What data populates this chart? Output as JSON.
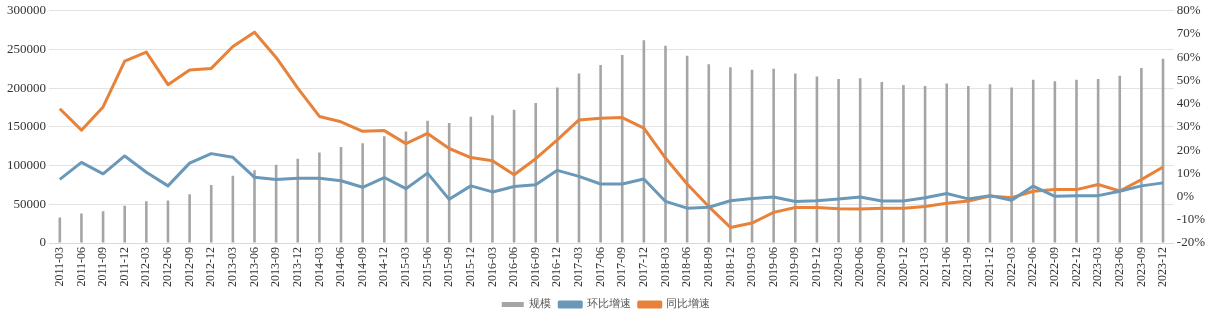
{
  "chart_data": {
    "type": "bar",
    "categories": [
      "2011-03",
      "2011-06",
      "2011-09",
      "2011-12",
      "2012-03",
      "2012-06",
      "2012-09",
      "2012-12",
      "2013-03",
      "2013-06",
      "2013-09",
      "2013-12",
      "2014-03",
      "2014-06",
      "2014-09",
      "2014-12",
      "2015-03",
      "2015-06",
      "2015-09",
      "2015-12",
      "2016-03",
      "2016-06",
      "2016-09",
      "2016-12",
      "2017-03",
      "2017-06",
      "2017-09",
      "2017-12",
      "2018-03",
      "2018-06",
      "2018-09",
      "2018-12",
      "2019-03",
      "2019-06",
      "2019-09",
      "2019-12",
      "2020-03",
      "2020-06",
      "2020-09",
      "2020-12",
      "2021-03",
      "2021-06",
      "2021-09",
      "2021-12",
      "2022-03",
      "2022-06",
      "2022-09",
      "2022-12",
      "2023-03",
      "2023-06",
      "2023-09",
      "2023-12"
    ],
    "series": [
      {
        "name": "规模",
        "color": "#a5a5a5",
        "values": [
          33000,
          38000,
          41000,
          48000,
          54000,
          55000,
          63000,
          75000,
          87000,
          94000,
          101000,
          109000,
          117000,
          124000,
          129000,
          138000,
          144000,
          158000,
          155000,
          163000,
          165000,
          172000,
          181000,
          201000,
          219000,
          230000,
          243000,
          262000,
          255000,
          242000,
          231000,
          227000,
          224000,
          225000,
          219000,
          215000,
          212000,
          213000,
          208000,
          204000,
          203000,
          206000,
          203000,
          205000,
          201000,
          211000,
          209000,
          211000,
          212000,
          216000,
          226000,
          238000
        ]
      },
      {
        "name": "环比增速",
        "type": "line",
        "axis": "y2",
        "color": "#6a98b9",
        "values": [
          7.4,
          14.7,
          9.8,
          17.5,
          10.5,
          4.6,
          14.4,
          18.5,
          16.9,
          8.3,
          7.3,
          7.9,
          7.9,
          6.8,
          4.0,
          8.2,
          3.4,
          10.1,
          -1.2,
          4.6,
          2.0,
          4.3,
          5.1,
          11.3,
          8.7,
          5.4,
          5.4,
          7.6,
          -2.1,
          -5.0,
          -4.6,
          -1.8,
          -0.8,
          -0.2,
          -2.1,
          -1.8,
          -1.0,
          -0.2,
          -1.9,
          -1.9,
          -0.5,
          1.3,
          -1.0,
          0.4,
          -1.6,
          4.5,
          0.1,
          0.4,
          0.4,
          2.3,
          4.6,
          5.9
        ]
      },
      {
        "name": "同比增速",
        "type": "line",
        "axis": "y2",
        "color": "#e8823a",
        "values": [
          37.8,
          28.6,
          38.6,
          58.3,
          62.2,
          48.2,
          54.5,
          55.2,
          64.6,
          70.8,
          59.9,
          46.7,
          34.5,
          32.2,
          28.1,
          28.4,
          22.8,
          27.2,
          20.7,
          16.8,
          15.4,
          9.4,
          16.3,
          24.4,
          33.0,
          33.7,
          34.0,
          29.5,
          16.6,
          5.4,
          -4.3,
          -13.3,
          -11.4,
          -6.8,
          -4.7,
          -4.7,
          -5.2,
          -5.4,
          -5.0,
          -5.0,
          -4.3,
          -2.9,
          -1.9,
          0.2,
          -0.5,
          2.3,
          3.0,
          3.0,
          5.2,
          2.4,
          7.3,
          12.7
        ]
      }
    ],
    "ylim": [
      0,
      300000
    ],
    "yticks": [
      0,
      50000,
      100000,
      150000,
      200000,
      250000,
      300000
    ],
    "y2lim": [
      -20,
      80
    ],
    "y2ticks": [
      {
        "value": -20,
        "label": "-20%"
      },
      {
        "value": -10,
        "label": "-10%"
      },
      {
        "value": 0,
        "label": "0%"
      },
      {
        "value": 10,
        "label": "10%"
      },
      {
        "value": 20,
        "label": "20%"
      },
      {
        "value": 30,
        "label": "30%"
      },
      {
        "value": 40,
        "label": "40%"
      },
      {
        "value": 50,
        "label": "50%"
      },
      {
        "value": 60,
        "label": "60%"
      },
      {
        "value": 70,
        "label": "70%"
      },
      {
        "value": 80,
        "label": "80%"
      }
    ],
    "grid": "y",
    "legend": "bottom",
    "marker": "none"
  }
}
